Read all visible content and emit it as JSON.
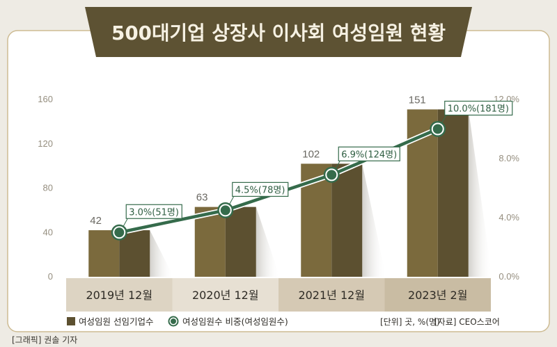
{
  "title": "500대기업 상장사 이사회 여성임원 현황",
  "chart_data": {
    "type": "bar",
    "categories": [
      "2019년 12월",
      "2020년 12월",
      "2021년 12월",
      "2023년 2월"
    ],
    "series": [
      {
        "name": "여성임원 선임기업수",
        "type": "bar",
        "axis": "left",
        "values": [
          42,
          63,
          102,
          151
        ]
      },
      {
        "name": "여성임원수 비중(여성임원수)",
        "type": "line",
        "axis": "right",
        "values": [
          3.0,
          4.5,
          6.9,
          10.0
        ],
        "counts": [
          51,
          78,
          124,
          181
        ],
        "labels": [
          "3.0%(51명)",
          "4.5%(78명)",
          "6.9%(124명)",
          "10.0%(181명)"
        ]
      }
    ],
    "y_left": {
      "range": [
        0,
        160
      ],
      "ticks": [
        0,
        40,
        80,
        120,
        160
      ]
    },
    "y_right": {
      "range": [
        0,
        12
      ],
      "ticks": [
        0,
        4,
        8,
        12
      ],
      "tick_labels": [
        "0.0%",
        "4.0%",
        "8.0%",
        "12.0%"
      ]
    },
    "grid": false,
    "legend_position": "bottom-left"
  },
  "notes": {
    "unit": "[단위] 곳, %(명)",
    "source": "[자료] CEO스코어"
  },
  "credit": "[그래픽] 권솔 기자",
  "colors": {
    "page_background": "#eeebe4",
    "card_border": "#cdbb92",
    "title_banner": "#5d5233",
    "bar_light": "#7b6a3d",
    "bar_dark": "#5c5030",
    "line": "#356b4b",
    "category_band": [
      "#ddd4c3",
      "#e7e0d3",
      "#d5c9b4",
      "#c9bca3"
    ]
  }
}
